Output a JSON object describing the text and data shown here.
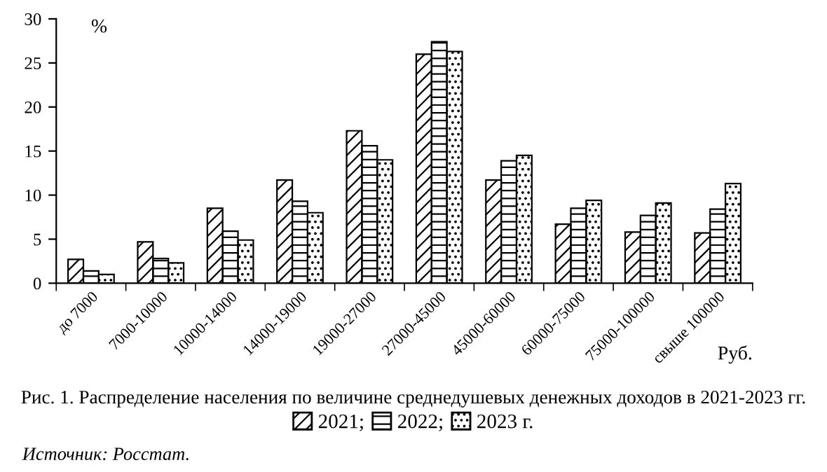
{
  "chart_data": {
    "type": "bar",
    "title": "Рис. 1. Распределение населения по величине среднедушевых денежных доходов в 2021-2023 гг.",
    "ylabel": "%",
    "xlabel": "Руб.",
    "annotations": [
      "Источник: Росстат."
    ],
    "categories": [
      "до 7000",
      "7000-10000",
      "10000-14000",
      "14000-19000",
      "19000-27000",
      "27000-45000",
      "45000-60000",
      "60000-75000",
      "75000-100000",
      "свыше 100000"
    ],
    "series": [
      {
        "name": "2021;",
        "color": "#000000",
        "values": [
          2.7,
          4.7,
          8.5,
          11.7,
          17.3,
          26.0,
          11.7,
          6.7,
          5.8,
          5.7
        ]
      },
      {
        "name": "2022;",
        "color": "#000000",
        "values": [
          1.4,
          2.8,
          5.9,
          9.3,
          15.6,
          27.4,
          13.9,
          8.5,
          7.7,
          8.4
        ]
      },
      {
        "name": "2023 г.",
        "color": "#000000",
        "values": [
          1.0,
          2.3,
          4.9,
          8.0,
          14.0,
          26.3,
          14.5,
          9.4,
          9.1,
          11.3
        ]
      }
    ],
    "ylim": [
      0,
      30
    ],
    "yticks": [
      0,
      5,
      10,
      15,
      20,
      25,
      30
    ],
    "grid": false,
    "legend": "bottom"
  }
}
